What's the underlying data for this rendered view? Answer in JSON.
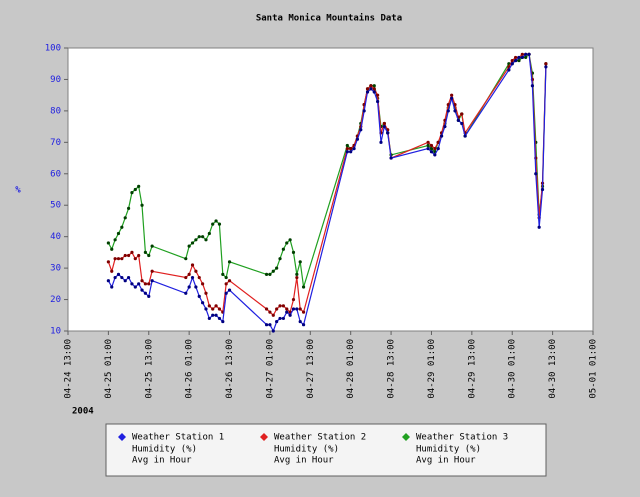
{
  "chart_data": {
    "type": "line",
    "title": "Santa Monica Mountains Data",
    "y_label": "%",
    "x_year_label": "2004",
    "x": [
      "2004-04-25T01:00",
      "2004-04-25T02:00",
      "2004-04-25T03:00",
      "2004-04-25T04:00",
      "2004-04-25T05:00",
      "2004-04-25T06:00",
      "2004-04-25T07:00",
      "2004-04-25T08:00",
      "2004-04-25T09:00",
      "2004-04-25T10:00",
      "2004-04-25T11:00",
      "2004-04-25T12:00",
      "2004-04-25T13:00",
      "2004-04-25T14:00",
      "2004-04-26T00:00",
      "2004-04-26T01:00",
      "2004-04-26T02:00",
      "2004-04-26T03:00",
      "2004-04-26T04:00",
      "2004-04-26T05:00",
      "2004-04-26T06:00",
      "2004-04-26T07:00",
      "2004-04-26T08:00",
      "2004-04-26T09:00",
      "2004-04-26T10:00",
      "2004-04-26T11:00",
      "2004-04-26T12:00",
      "2004-04-26T13:00",
      "2004-04-27T00:00",
      "2004-04-27T01:00",
      "2004-04-27T02:00",
      "2004-04-27T03:00",
      "2004-04-27T04:00",
      "2004-04-27T05:00",
      "2004-04-27T06:00",
      "2004-04-27T07:00",
      "2004-04-27T08:00",
      "2004-04-27T09:00",
      "2004-04-27T10:00",
      "2004-04-27T11:00",
      "2004-04-28T00:00",
      "2004-04-28T01:00",
      "2004-04-28T02:00",
      "2004-04-28T03:00",
      "2004-04-28T04:00",
      "2004-04-28T05:00",
      "2004-04-28T06:00",
      "2004-04-28T07:00",
      "2004-04-28T08:00",
      "2004-04-28T09:00",
      "2004-04-28T10:00",
      "2004-04-28T11:00",
      "2004-04-28T12:00",
      "2004-04-28T13:00",
      "2004-04-29T00:00",
      "2004-04-29T01:00",
      "2004-04-29T02:00",
      "2004-04-29T03:00",
      "2004-04-29T04:00",
      "2004-04-29T05:00",
      "2004-04-29T06:00",
      "2004-04-29T07:00",
      "2004-04-29T08:00",
      "2004-04-29T09:00",
      "2004-04-29T10:00",
      "2004-04-29T11:00",
      "2004-04-30T00:00",
      "2004-04-30T01:00",
      "2004-04-30T02:00",
      "2004-04-30T03:00",
      "2004-04-30T04:00",
      "2004-04-30T05:00",
      "2004-04-30T06:00",
      "2004-04-30T07:00",
      "2004-04-30T08:00",
      "2004-04-30T09:00",
      "2004-04-30T10:00",
      "2004-04-30T11:00"
    ],
    "series": [
      {
        "name": "Weather Station 1",
        "legend_lines": [
          "Humidity (%)",
          "Avg in Hour"
        ],
        "color": "#2020e0",
        "marker_color": "#000080",
        "values": [
          26,
          24,
          27,
          28,
          27,
          26,
          27,
          25,
          24,
          25,
          23,
          22,
          21,
          26,
          22,
          24,
          27,
          24,
          21,
          19,
          17,
          14,
          15,
          15,
          14,
          13,
          22,
          23,
          12,
          12,
          10,
          13,
          14,
          14,
          16,
          15,
          17,
          17,
          13,
          12,
          67,
          67,
          68,
          71,
          74,
          80,
          86,
          87,
          86,
          83,
          70,
          75,
          73,
          65,
          68,
          67,
          66,
          68,
          72,
          75,
          80,
          84,
          80,
          77,
          76,
          72,
          93,
          95,
          96,
          97,
          97,
          98,
          98,
          88,
          60,
          43,
          55,
          94
        ]
      },
      {
        "name": "Weather Station 2",
        "legend_lines": [
          "Humidity (%)",
          "Avg in Hour"
        ],
        "color": "#e02020",
        "marker_color": "#800000",
        "values": [
          32,
          29,
          33,
          33,
          33,
          34,
          34,
          35,
          33,
          34,
          26,
          25,
          25,
          29,
          27,
          28,
          31,
          29,
          27,
          25,
          22,
          18,
          17,
          18,
          17,
          16,
          25,
          26,
          17,
          16,
          15,
          17,
          18,
          18,
          17,
          16,
          20,
          27,
          17,
          16,
          68,
          68,
          69,
          72,
          75,
          82,
          87,
          88,
          87,
          85,
          73,
          76,
          74,
          65,
          70,
          69,
          68,
          70,
          73,
          77,
          82,
          85,
          82,
          78,
          79,
          73,
          94,
          96,
          97,
          97,
          98,
          98,
          98,
          90,
          65,
          46,
          57,
          95
        ]
      },
      {
        "name": "Weather Station 3",
        "legend_lines": [
          "Humidity (%)",
          "Avg in Hour"
        ],
        "color": "#20a020",
        "marker_color": "#004000",
        "values": [
          38,
          36,
          39,
          41,
          43,
          46,
          49,
          54,
          55,
          56,
          50,
          35,
          34,
          37,
          33,
          37,
          38,
          39,
          40,
          40,
          39,
          41,
          44,
          45,
          44,
          28,
          27,
          32,
          28,
          28,
          29,
          30,
          33,
          36,
          38,
          39,
          35,
          28,
          32,
          24,
          69,
          68,
          69,
          72,
          76,
          82,
          87,
          88,
          88,
          84,
          75,
          76,
          73,
          66,
          69,
          68,
          67,
          70,
          72,
          76,
          81,
          84,
          81,
          77,
          79,
          72,
          95,
          95,
          96,
          96,
          97,
          97,
          98,
          92,
          70,
          47,
          56,
          95
        ]
      }
    ],
    "xlim": [
      "2004-04-24T13:00",
      "2004-05-01T01:00"
    ],
    "xticks": [
      {
        "value": "2004-04-24T13:00",
        "label": "04-24 13:00"
      },
      {
        "value": "2004-04-25T01:00",
        "label": "04-25 01:00"
      },
      {
        "value": "2004-04-25T13:00",
        "label": "04-25 13:00"
      },
      {
        "value": "2004-04-26T01:00",
        "label": "04-26 01:00"
      },
      {
        "value": "2004-04-26T13:00",
        "label": "04-26 13:00"
      },
      {
        "value": "2004-04-27T01:00",
        "label": "04-27 01:00"
      },
      {
        "value": "2004-04-27T13:00",
        "label": "04-27 13:00"
      },
      {
        "value": "2004-04-28T01:00",
        "label": "04-28 01:00"
      },
      {
        "value": "2004-04-28T13:00",
        "label": "04-28 13:00"
      },
      {
        "value": "2004-04-29T01:00",
        "label": "04-29 01:00"
      },
      {
        "value": "2004-04-29T13:00",
        "label": "04-29 13:00"
      },
      {
        "value": "2004-04-30T01:00",
        "label": "04-30 01:00"
      },
      {
        "value": "2004-04-30T13:00",
        "label": "04-30 13:00"
      },
      {
        "value": "2004-05-01T01:00",
        "label": "05-01 01:00"
      }
    ],
    "ylim": [
      10,
      100
    ],
    "yticks": [
      10,
      20,
      30,
      40,
      50,
      60,
      70,
      80,
      90,
      100
    ],
    "grid": false
  }
}
